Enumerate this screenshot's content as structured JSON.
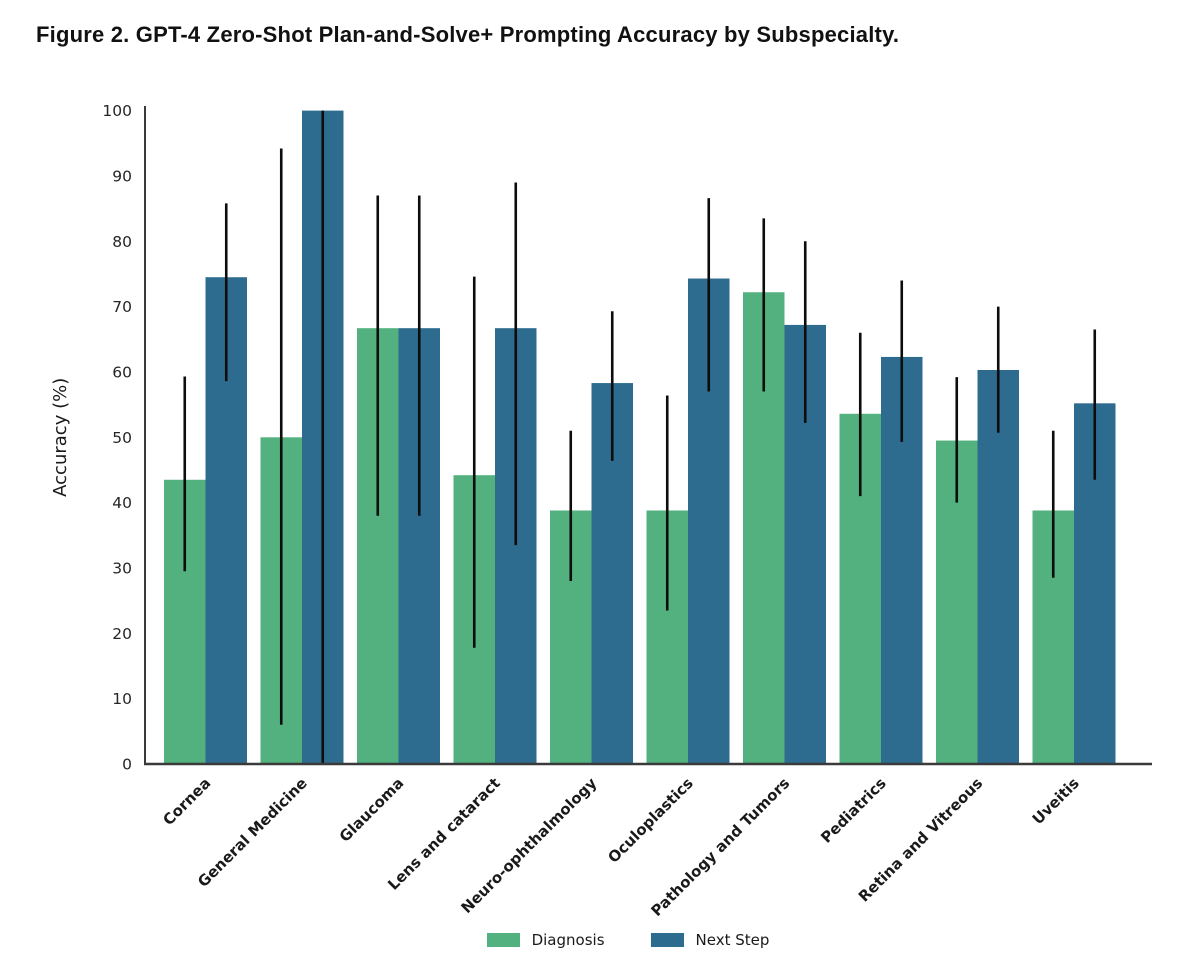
{
  "title": "Figure 2. GPT-4 Zero-Shot Plan-and-Solve+ Prompting Accuracy by Subspecialty.",
  "colors": {
    "diagnosis": "#52b17e",
    "next_step": "#2e6c8f",
    "error_bar": "#0d0d0d",
    "axis": "#3a3a3a",
    "tick_label": "#262626",
    "x_label": "#1a1a1a"
  },
  "chart_data": {
    "type": "bar",
    "title": "",
    "xlabel": "",
    "ylabel": "Accuracy (%)",
    "ylim": [
      0,
      100
    ],
    "yticks": [
      0,
      10,
      20,
      30,
      40,
      50,
      60,
      70,
      80,
      90,
      100
    ],
    "grid": false,
    "error_bars": true,
    "legend_position": "bottom-center",
    "categories": [
      "Cornea",
      "General Medicine",
      "Glaucoma",
      "Lens and cataract",
      "Neuro-ophthalmology",
      "Oculoplastics",
      "Pathology and Tumors",
      "Pediatrics",
      "Retina and Vitreous",
      "Uveitis"
    ],
    "series": [
      {
        "name": "Diagnosis",
        "color": "#52b17e",
        "values": [
          43.5,
          50.0,
          66.7,
          44.2,
          38.8,
          38.8,
          72.2,
          53.6,
          49.5,
          38.8
        ],
        "error_low": [
          29.5,
          6.0,
          38.0,
          17.8,
          28.0,
          23.5,
          57.0,
          41.0,
          40.0,
          28.5
        ],
        "error_high": [
          59.3,
          94.2,
          87.0,
          74.6,
          51.0,
          56.4,
          83.5,
          66.0,
          59.2,
          51.0
        ]
      },
      {
        "name": "Next Step",
        "color": "#2e6c8f",
        "values": [
          74.5,
          100.0,
          66.7,
          66.7,
          58.3,
          74.3,
          67.2,
          62.3,
          60.3,
          55.2
        ],
        "error_low": [
          58.6,
          0.0,
          38.0,
          33.5,
          46.4,
          57.0,
          52.2,
          49.3,
          50.7,
          43.5
        ],
        "error_high": [
          85.8,
          100.0,
          87.0,
          89.0,
          69.3,
          86.6,
          80.0,
          74.0,
          70.0,
          66.5
        ]
      }
    ]
  }
}
